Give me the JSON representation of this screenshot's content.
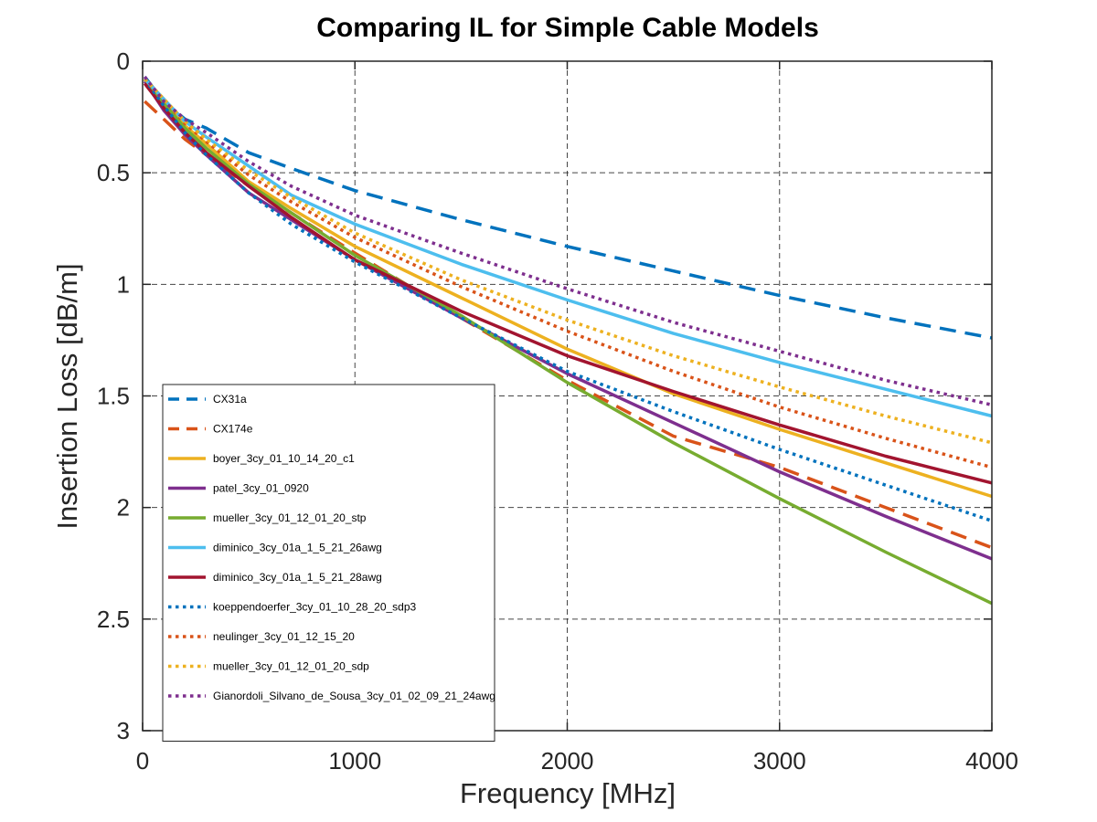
{
  "chart_data": {
    "type": "line",
    "title": "Comparing IL for Simple Cable Models",
    "xlabel": "Frequency [MHz]",
    "ylabel": "Insertion Loss [dB/m]",
    "xlim": [
      0,
      4000
    ],
    "ylim": [
      0,
      3
    ],
    "y_reversed": true,
    "grid": true,
    "legend_position": "lower-left",
    "xticks": [
      0,
      1000,
      2000,
      3000,
      4000
    ],
    "xtick_labels": [
      "0",
      "1000",
      "2000",
      "3000",
      "4000"
    ],
    "yticks": [
      0,
      0.5,
      1,
      1.5,
      2,
      2.5,
      3
    ],
    "ytick_labels": [
      "0",
      "0.5",
      "1",
      "1.5",
      "2",
      "2.5",
      "3"
    ],
    "x": [
      10,
      100,
      200,
      300,
      500,
      700,
      1000,
      1500,
      2000,
      2500,
      3000,
      3500,
      4000
    ],
    "series": [
      {
        "name": "CX31a",
        "color": "#0072BD",
        "style": "dashed",
        "values": [
          0.07,
          0.18,
          0.26,
          0.3,
          0.41,
          0.48,
          0.58,
          0.71,
          0.83,
          0.94,
          1.05,
          1.15,
          1.24
        ]
      },
      {
        "name": "CX174e",
        "color": "#D95319",
        "style": "dashed",
        "values": [
          0.18,
          0.26,
          0.35,
          0.42,
          0.56,
          0.68,
          0.86,
          1.15,
          1.43,
          1.68,
          1.82,
          2.0,
          2.18
        ]
      },
      {
        "name": "boyer_3cy_01_10_14_20_c1",
        "color": "#EDB120",
        "style": "solid",
        "values": [
          0.08,
          0.17,
          0.29,
          0.37,
          0.54,
          0.66,
          0.83,
          1.06,
          1.29,
          1.49,
          1.65,
          1.8,
          1.95
        ]
      },
      {
        "name": "patel_3cy_01_0920",
        "color": "#7E2F8E",
        "style": "solid",
        "values": [
          0.09,
          0.22,
          0.33,
          0.42,
          0.59,
          0.71,
          0.89,
          1.15,
          1.4,
          1.62,
          1.84,
          2.04,
          2.23
        ]
      },
      {
        "name": "mueller_3cy_01_12_01_20_stp",
        "color": "#77AC30",
        "style": "solid",
        "values": [
          0.08,
          0.19,
          0.3,
          0.39,
          0.55,
          0.68,
          0.87,
          1.14,
          1.44,
          1.71,
          1.96,
          2.2,
          2.43
        ]
      },
      {
        "name": "diminico_3cy_01a_1_5_21_26awg",
        "color": "#4DBEEE",
        "style": "solid",
        "values": [
          0.08,
          0.17,
          0.27,
          0.34,
          0.47,
          0.6,
          0.73,
          0.91,
          1.07,
          1.22,
          1.35,
          1.47,
          1.59
        ]
      },
      {
        "name": "diminico_3cy_01a_1_5_21_28awg",
        "color": "#A2142F",
        "style": "solid",
        "values": [
          0.1,
          0.21,
          0.32,
          0.41,
          0.56,
          0.7,
          0.89,
          1.12,
          1.32,
          1.48,
          1.63,
          1.77,
          1.89
        ]
      },
      {
        "name": "koeppendoerfer_3cy_01_10_28_20_sdp3",
        "color": "#0072BD",
        "style": "dotted",
        "values": [
          0.08,
          0.2,
          0.32,
          0.42,
          0.59,
          0.73,
          0.9,
          1.15,
          1.39,
          1.57,
          1.74,
          1.9,
          2.06
        ]
      },
      {
        "name": "neulinger_3cy_01_12_15_20",
        "color": "#D95319",
        "style": "dotted",
        "values": [
          0.08,
          0.17,
          0.28,
          0.36,
          0.51,
          0.63,
          0.79,
          1.01,
          1.21,
          1.39,
          1.55,
          1.69,
          1.82
        ]
      },
      {
        "name": "mueller_3cy_01_12_01_20_sdp",
        "color": "#EDB120",
        "style": "dotted",
        "values": [
          0.08,
          0.17,
          0.27,
          0.35,
          0.49,
          0.61,
          0.77,
          0.98,
          1.16,
          1.32,
          1.46,
          1.59,
          1.71
        ]
      },
      {
        "name": "Gianordoli_Silvano_de_Sousa_3cy_01_02_09_21_24awg",
        "color": "#7E2F8E",
        "style": "dotted",
        "values": [
          0.07,
          0.18,
          0.26,
          0.32,
          0.45,
          0.56,
          0.69,
          0.86,
          1.02,
          1.17,
          1.3,
          1.43,
          1.54
        ]
      }
    ]
  }
}
